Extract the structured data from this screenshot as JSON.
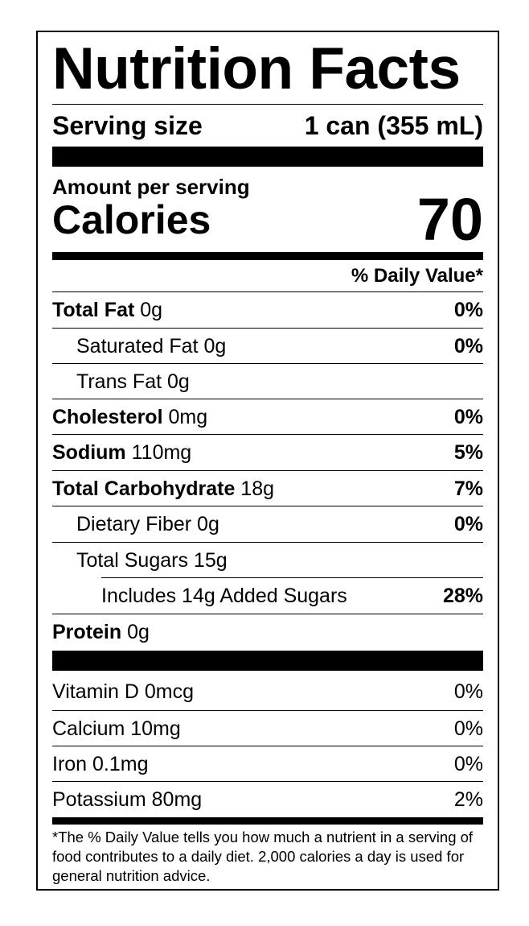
{
  "title": "Nutrition Facts",
  "serving": {
    "label": "Serving size",
    "value": "1 can (355 mL)"
  },
  "amount_per_serving": "Amount per serving",
  "calories": {
    "label": "Calories",
    "value": "70"
  },
  "daily_value_header": "% Daily Value*",
  "nutrients": [
    {
      "name": "Total Fat",
      "amount": "0g",
      "dv": "0%"
    },
    {
      "name": "Saturated Fat",
      "amount": "0g",
      "dv": "0%"
    },
    {
      "name": "Trans Fat",
      "amount": "0g",
      "dv": ""
    },
    {
      "name": "Cholesterol",
      "amount": "0mg",
      "dv": "0%"
    },
    {
      "name": "Sodium",
      "amount": "110mg",
      "dv": "5%"
    },
    {
      "name": "Total Carbohydrate",
      "amount": "18g",
      "dv": "7%"
    },
    {
      "name": "Dietary Fiber",
      "amount": "0g",
      "dv": "0%"
    },
    {
      "name": "Total Sugars",
      "amount": "15g",
      "dv": ""
    },
    {
      "text": "Includes 14g Added Sugars",
      "dv": "28%"
    },
    {
      "name": "Protein",
      "amount": "0g",
      "dv": ""
    }
  ],
  "vitamins": [
    {
      "text": "Vitamin D 0mcg",
      "dv": "0%"
    },
    {
      "text": "Calcium 10mg",
      "dv": "0%"
    },
    {
      "text": "Iron 0.1mg",
      "dv": "0%"
    },
    {
      "text": "Potassium 80mg",
      "dv": "2%"
    }
  ],
  "footnote": "*The % Daily Value tells you how much a nutrient in a serving of food contributes to a daily diet. 2,000 calories a day is used for general nutrition advice."
}
